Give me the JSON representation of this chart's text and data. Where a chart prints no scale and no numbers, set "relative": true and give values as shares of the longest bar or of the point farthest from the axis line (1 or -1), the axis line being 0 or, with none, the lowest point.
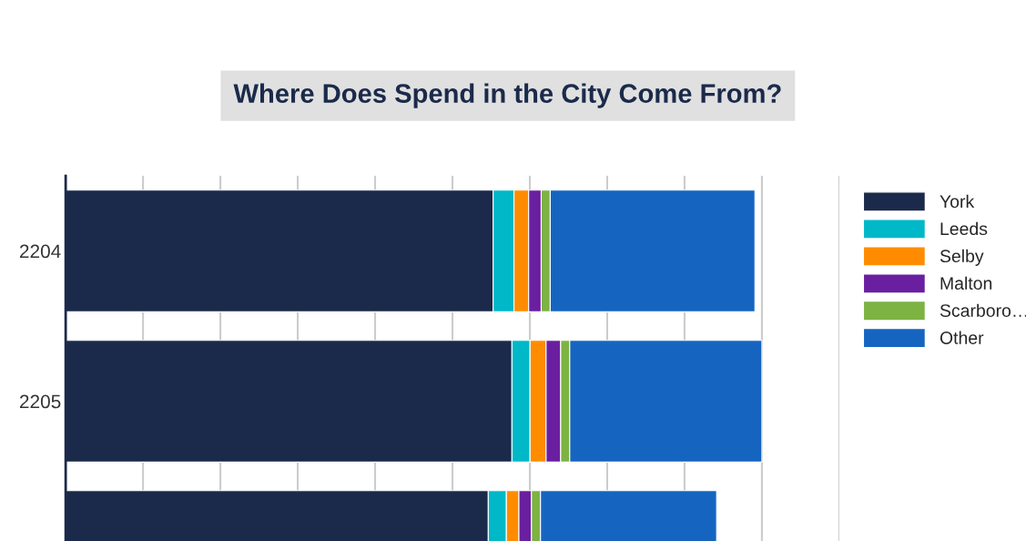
{
  "chart_data": {
    "type": "bar",
    "title": "Where Does Spend in the City Come From?",
    "orientation": "horizontal",
    "stacked": true,
    "relative": true,
    "categories": [
      "2204",
      "2205",
      null
    ],
    "series": [
      {
        "name": "York",
        "color": "#1b2a4a",
        "values": [
          0.614,
          0.641,
          0.607
        ]
      },
      {
        "name": "Leeds",
        "color": "#00b8c8",
        "values": [
          0.03,
          0.026,
          0.026
        ]
      },
      {
        "name": "Selby",
        "color": "#ff8c00",
        "values": [
          0.021,
          0.023,
          0.018
        ]
      },
      {
        "name": "Malton",
        "color": "#6a1fa0",
        "values": [
          0.018,
          0.021,
          0.018
        ]
      },
      {
        "name": "Scarboro…",
        "color": "#7cb342",
        "values": [
          0.013,
          0.013,
          0.013
        ]
      },
      {
        "name": "Other",
        "color": "#1565c0",
        "values": [
          0.294,
          0.276,
          0.253
        ]
      }
    ],
    "grid": "x",
    "legend": "top right",
    "tick_labels": "y"
  }
}
